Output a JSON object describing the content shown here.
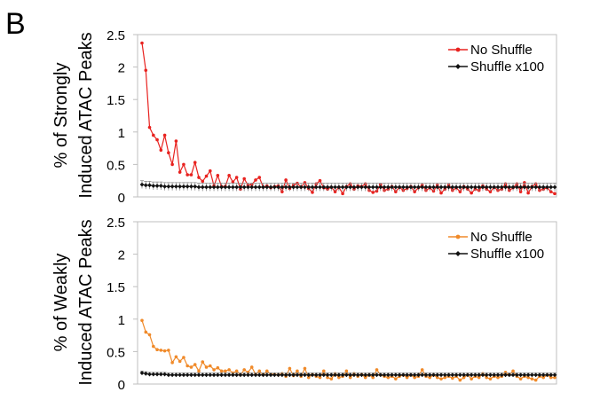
{
  "panel_label": "B",
  "chart_data": [
    {
      "type": "line",
      "ylabel_line1": "% of Strongly",
      "ylabel_line2": "Induced ATAC Peaks",
      "ylim": [
        0,
        2.5
      ],
      "yticks": [
        "0",
        "0.5",
        "1",
        "1.5",
        "2",
        "2.5"
      ],
      "grid": false,
      "legend_position": "top-right",
      "series": [
        {
          "name": "No Shuffle",
          "color": "#e8221f",
          "marker": "circle",
          "values": [
            2.37,
            1.95,
            1.07,
            0.95,
            0.88,
            0.72,
            0.95,
            0.68,
            0.5,
            0.86,
            0.38,
            0.5,
            0.34,
            0.34,
            0.53,
            0.3,
            0.24,
            0.32,
            0.4,
            0.17,
            0.33,
            0.16,
            0.16,
            0.33,
            0.23,
            0.3,
            0.12,
            0.28,
            0.18,
            0.19,
            0.26,
            0.3,
            0.15,
            0.17,
            0.14,
            0.16,
            0.17,
            0.08,
            0.26,
            0.13,
            0.18,
            0.21,
            0.15,
            0.22,
            0.13,
            0.07,
            0.2,
            0.25,
            0.14,
            0.12,
            0.15,
            0.08,
            0.15,
            0.05,
            0.16,
            0.2,
            0.12,
            0.17,
            0.16,
            0.2,
            0.1,
            0.07,
            0.09,
            0.19,
            0.1,
            0.12,
            0.16,
            0.08,
            0.15,
            0.1,
            0.13,
            0.16,
            0.08,
            0.14,
            0.18,
            0.1,
            0.14,
            0.09,
            0.18,
            0.06,
            0.12,
            0.18,
            0.1,
            0.14,
            0.08,
            0.16,
            0.12,
            0.06,
            0.12,
            0.1,
            0.17,
            0.12,
            0.08,
            0.15,
            0.1,
            0.12,
            0.2,
            0.1,
            0.14,
            0.2,
            0.08,
            0.22,
            0.06,
            0.16,
            0.2,
            0.1,
            0.12,
            0.14,
            0.08,
            0.05
          ]
        },
        {
          "name": "Shuffle x100",
          "color": "#111111",
          "marker": "diamond",
          "error_bars": true,
          "values": [
            0.19,
            0.18,
            0.18,
            0.17,
            0.17,
            0.17,
            0.16,
            0.16,
            0.16,
            0.16,
            0.16,
            0.16,
            0.16,
            0.16,
            0.16,
            0.15,
            0.15,
            0.15,
            0.15,
            0.15,
            0.15,
            0.15,
            0.15,
            0.15,
            0.15,
            0.15,
            0.15,
            0.15,
            0.15,
            0.15,
            0.15,
            0.15,
            0.15,
            0.15,
            0.15,
            0.15,
            0.15,
            0.15,
            0.15,
            0.15,
            0.15,
            0.15,
            0.15,
            0.15,
            0.15,
            0.15,
            0.15,
            0.15,
            0.15,
            0.15,
            0.15,
            0.15,
            0.15,
            0.15,
            0.15,
            0.15,
            0.15,
            0.15,
            0.15,
            0.15,
            0.15,
            0.15,
            0.15,
            0.15,
            0.15,
            0.15,
            0.15,
            0.15,
            0.15,
            0.15,
            0.15,
            0.15,
            0.15,
            0.15,
            0.15,
            0.15,
            0.15,
            0.15,
            0.15,
            0.15,
            0.15,
            0.15,
            0.15,
            0.15,
            0.15,
            0.15,
            0.15,
            0.15,
            0.15,
            0.15,
            0.15,
            0.15,
            0.15,
            0.15,
            0.15,
            0.15,
            0.15,
            0.15,
            0.15,
            0.15,
            0.15,
            0.15,
            0.15,
            0.15,
            0.15,
            0.15,
            0.15,
            0.15,
            0.15,
            0.15
          ],
          "error": 0.06
        }
      ]
    },
    {
      "type": "line",
      "ylabel_line1": "% of Weakly",
      "ylabel_line2": "Induced ATAC Peaks",
      "ylim": [
        0,
        2.5
      ],
      "yticks": [
        "0",
        "0.5",
        "1",
        "1.5",
        "2",
        "2.5"
      ],
      "grid": false,
      "legend_position": "top-right",
      "series": [
        {
          "name": "No Shuffle",
          "color": "#f08a2a",
          "marker": "circle",
          "values": [
            0.98,
            0.8,
            0.76,
            0.58,
            0.53,
            0.52,
            0.51,
            0.52,
            0.33,
            0.42,
            0.35,
            0.41,
            0.28,
            0.26,
            0.3,
            0.2,
            0.34,
            0.26,
            0.28,
            0.22,
            0.25,
            0.2,
            0.2,
            0.22,
            0.17,
            0.2,
            0.14,
            0.22,
            0.18,
            0.26,
            0.15,
            0.2,
            0.14,
            0.2,
            0.15,
            0.15,
            0.14,
            0.16,
            0.12,
            0.24,
            0.13,
            0.2,
            0.12,
            0.24,
            0.1,
            0.15,
            0.12,
            0.1,
            0.2,
            0.1,
            0.08,
            0.16,
            0.1,
            0.12,
            0.2,
            0.1,
            0.16,
            0.12,
            0.15,
            0.1,
            0.14,
            0.1,
            0.22,
            0.14,
            0.12,
            0.1,
            0.12,
            0.08,
            0.12,
            0.14,
            0.1,
            0.14,
            0.1,
            0.12,
            0.22,
            0.12,
            0.1,
            0.14,
            0.1,
            0.08,
            0.1,
            0.12,
            0.09,
            0.12,
            0.06,
            0.1,
            0.14,
            0.08,
            0.12,
            0.1,
            0.16,
            0.1,
            0.08,
            0.12,
            0.1,
            0.12,
            0.18,
            0.14,
            0.2,
            0.12,
            0.08,
            0.12,
            0.1,
            0.08,
            0.06,
            0.12,
            0.1,
            0.14,
            0.1,
            0.1
          ]
        },
        {
          "name": "Shuffle x100",
          "color": "#111111",
          "marker": "diamond",
          "error_bars": true,
          "values": [
            0.17,
            0.16,
            0.15,
            0.15,
            0.15,
            0.15,
            0.15,
            0.14,
            0.14,
            0.14,
            0.14,
            0.14,
            0.14,
            0.14,
            0.14,
            0.14,
            0.14,
            0.14,
            0.14,
            0.14,
            0.14,
            0.14,
            0.14,
            0.14,
            0.14,
            0.14,
            0.14,
            0.14,
            0.14,
            0.14,
            0.14,
            0.14,
            0.14,
            0.14,
            0.14,
            0.14,
            0.14,
            0.14,
            0.14,
            0.14,
            0.14,
            0.14,
            0.14,
            0.14,
            0.14,
            0.14,
            0.14,
            0.14,
            0.14,
            0.14,
            0.14,
            0.14,
            0.14,
            0.14,
            0.14,
            0.14,
            0.14,
            0.14,
            0.14,
            0.14,
            0.14,
            0.14,
            0.14,
            0.14,
            0.14,
            0.14,
            0.14,
            0.14,
            0.14,
            0.14,
            0.14,
            0.14,
            0.14,
            0.14,
            0.14,
            0.14,
            0.14,
            0.14,
            0.14,
            0.14,
            0.14,
            0.14,
            0.14,
            0.14,
            0.14,
            0.14,
            0.14,
            0.14,
            0.14,
            0.14,
            0.14,
            0.14,
            0.14,
            0.14,
            0.14,
            0.14,
            0.14,
            0.14,
            0.14,
            0.14,
            0.14,
            0.14,
            0.14,
            0.14,
            0.14,
            0.14,
            0.14,
            0.14,
            0.14,
            0.14
          ],
          "error": 0.03
        }
      ]
    }
  ]
}
